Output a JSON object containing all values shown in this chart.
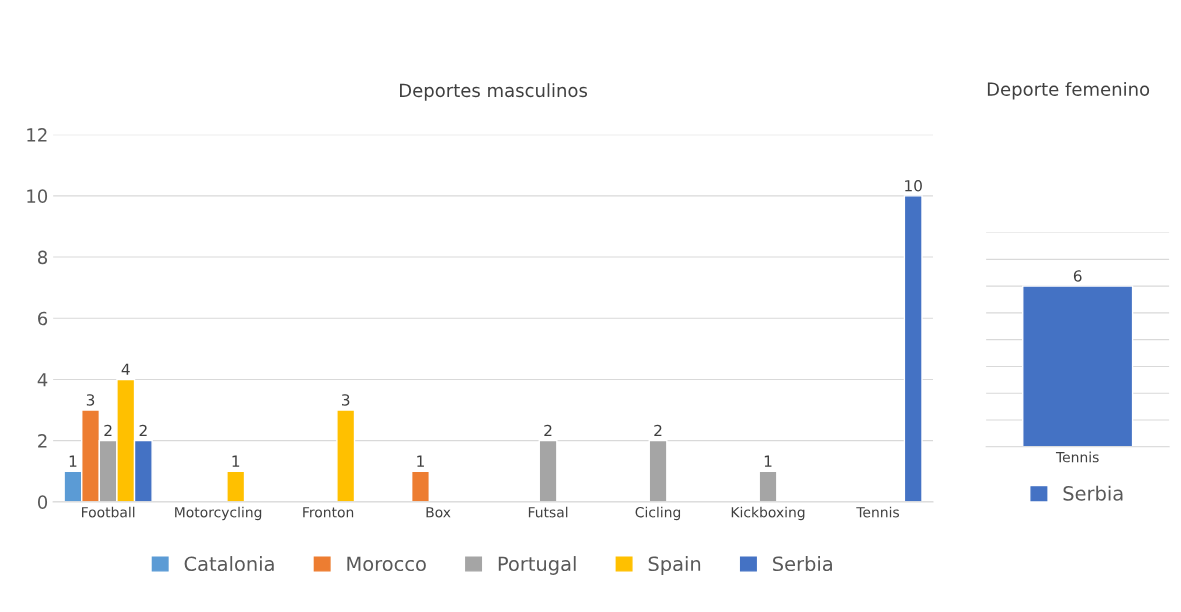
{
  "chart_data": [
    {
      "type": "bar",
      "title": "Deportes masculinos",
      "categories": [
        "Football",
        "Motorcycling",
        "Fronton",
        "Box",
        "Futsal",
        "Cicling",
        "Kickboxing",
        "Tennis"
      ],
      "series": [
        {
          "name": "Catalonia",
          "color": "#5b9bd5",
          "values": [
            1,
            null,
            null,
            null,
            null,
            null,
            null,
            null
          ]
        },
        {
          "name": "Morocco",
          "color": "#ed7d31",
          "values": [
            3,
            null,
            null,
            1,
            null,
            null,
            null,
            null
          ]
        },
        {
          "name": "Portugal",
          "color": "#a5a5a5",
          "values": [
            2,
            null,
            null,
            null,
            2,
            2,
            1,
            null
          ]
        },
        {
          "name": "Spain",
          "color": "#ffc000",
          "values": [
            4,
            1,
            3,
            null,
            null,
            null,
            null,
            null
          ]
        },
        {
          "name": "Serbia",
          "color": "#4472c4",
          "values": [
            2,
            null,
            null,
            null,
            null,
            null,
            null,
            10
          ]
        }
      ],
      "ylim": [
        0,
        12
      ],
      "yticks": [
        0,
        2,
        4,
        6,
        8,
        10,
        12
      ],
      "grid": "y",
      "legend": "bottom",
      "data_labels": true
    },
    {
      "type": "bar",
      "title": "Deporte femenino",
      "categories": [
        "Tennis"
      ],
      "series": [
        {
          "name": "Serbia",
          "color": "#4472c4",
          "values": [
            6
          ]
        }
      ],
      "ylim": [
        0,
        8
      ],
      "yticks": [
        {
          "value": 0,
          "label": null
        },
        {
          "value": 1,
          "label": null
        },
        {
          "value": 2,
          "label": null
        },
        {
          "value": 3,
          "label": null
        },
        {
          "value": 4,
          "label": null
        },
        {
          "value": 5,
          "label": null
        },
        {
          "value": 6,
          "label": null
        },
        {
          "value": 7,
          "label": null
        },
        {
          "value": 8,
          "label": null
        }
      ],
      "tick_labels": "x",
      "grid": "y",
      "legend": "bottom",
      "data_labels": true
    }
  ]
}
